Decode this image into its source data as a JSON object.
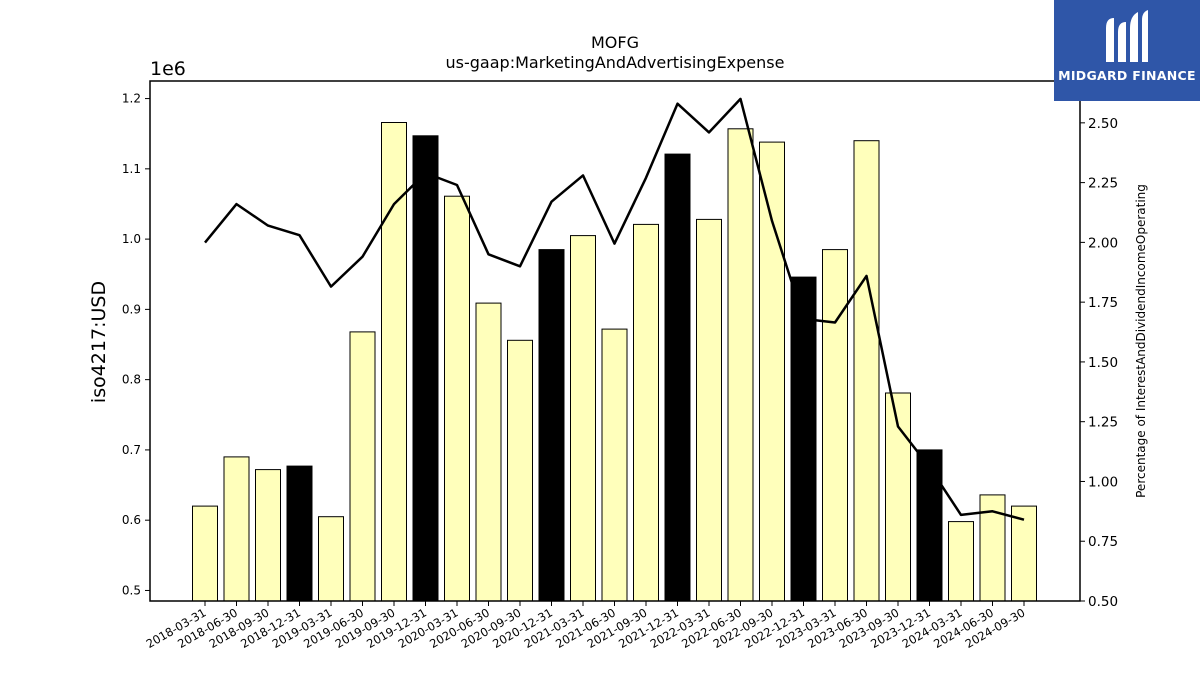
{
  "logo": {
    "text": "MIDGARD FINANCE",
    "color": "#2f56a8"
  },
  "chart_data": {
    "type": "bar",
    "title": "MOFG",
    "subtitle": "us-gaap:MarketingAndAdvertisingExpense",
    "ylabel": "iso4217:USD",
    "y_multiplier": "1e6",
    "y2label": "Percentage of InterestAndDividendIncomeOperating",
    "ylim": [
      0.485,
      1.225
    ],
    "y2lim": [
      0.5,
      2.675
    ],
    "yticks": [
      "0.5",
      "0.6",
      "0.7",
      "0.8",
      "0.9",
      "1.0",
      "1.1",
      "1.2"
    ],
    "y2ticks": [
      "0.50",
      "0.75",
      "1.00",
      "1.25",
      "1.50",
      "1.75",
      "2.00",
      "2.25",
      "2.50"
    ],
    "categories": [
      "2018-03-31",
      "2018-06-30",
      "2018-09-30",
      "2018-12-31",
      "2019-03-31",
      "2019-06-30",
      "2019-09-30",
      "2019-12-31",
      "2020-03-31",
      "2020-06-30",
      "2020-09-30",
      "2020-12-31",
      "2021-03-31",
      "2021-06-30",
      "2021-09-30",
      "2021-12-31",
      "2022-03-31",
      "2022-06-30",
      "2022-09-30",
      "2022-12-31",
      "2023-03-31",
      "2023-06-30",
      "2023-09-30",
      "2023-12-31",
      "2024-03-31",
      "2024-06-30",
      "2024-09-30"
    ],
    "series": [
      {
        "kind": "bar",
        "values": [
          0.62,
          0.69,
          0.672,
          0.677,
          0.605,
          0.868,
          1.166,
          1.147,
          1.061,
          0.909,
          0.856,
          0.985,
          1.005,
          0.872,
          1.021,
          1.121,
          1.028,
          1.157,
          1.138,
          0.946,
          0.985,
          1.14,
          0.781,
          0.7,
          0.598,
          0.636,
          0.62
        ],
        "year_end_color": "#000000",
        "quarter_color": "#ffffbb"
      },
      {
        "kind": "line",
        "axis": "right",
        "color": "#000000",
        "values": [
          1.999,
          2.16,
          2.07,
          2.03,
          1.815,
          1.94,
          2.16,
          2.29,
          2.24,
          1.95,
          1.9,
          2.17,
          2.28,
          1.995,
          2.27,
          2.58,
          2.46,
          2.6,
          2.09,
          1.68,
          1.665,
          1.86,
          1.23,
          1.06,
          0.86,
          0.875,
          0.84
        ]
      }
    ],
    "grid": false,
    "legend": "none"
  }
}
